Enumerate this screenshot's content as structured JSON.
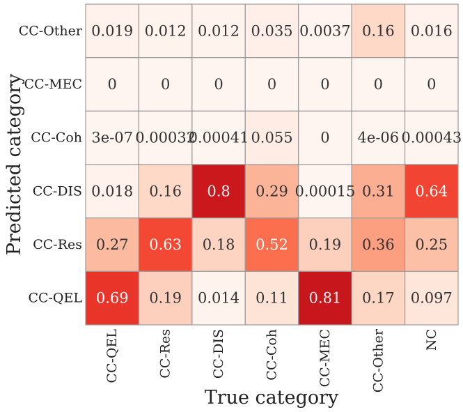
{
  "chart_data": {
    "type": "heatmap",
    "xlabel": "True category",
    "ylabel": "Predicted category",
    "x_categories": [
      "CC-QEL",
      "CC-Res",
      "CC-DIS",
      "CC-Coh",
      "CC-MEC",
      "CC-Other",
      "NC"
    ],
    "y_categories": [
      "CC-Other",
      "CC-MEC",
      "CC-Coh",
      "CC-DIS",
      "CC-Res",
      "CC-QEL"
    ],
    "values": [
      [
        0.019,
        0.012,
        0.012,
        0.035,
        0.0037,
        0.16,
        0.016
      ],
      [
        0,
        0,
        0,
        0,
        0,
        0,
        0
      ],
      [
        3e-07,
        0.00032,
        0.00041,
        0.055,
        0,
        4e-06,
        0.00043
      ],
      [
        0.018,
        0.16,
        0.8,
        0.29,
        0.00015,
        0.31,
        0.64
      ],
      [
        0.27,
        0.63,
        0.18,
        0.52,
        0.19,
        0.36,
        0.25
      ],
      [
        0.69,
        0.19,
        0.014,
        0.11,
        0.81,
        0.17,
        0.097
      ]
    ],
    "labels": [
      [
        "0.019",
        "0.012",
        "0.012",
        "0.035",
        "0.0037",
        "0.16",
        "0.016"
      ],
      [
        "0",
        "0",
        "0",
        "0",
        "0",
        "0",
        "0"
      ],
      [
        "3e-07",
        "0.00032",
        "0.00041",
        "0.055",
        "0",
        "4e-06",
        "0.00043"
      ],
      [
        "0.018",
        "0.16",
        "0.8",
        "0.29",
        "0.00015",
        "0.31",
        "0.64"
      ],
      [
        "0.27",
        "0.63",
        "0.18",
        "0.52",
        "0.19",
        "0.36",
        "0.25"
      ],
      [
        "0.69",
        "0.19",
        "0.014",
        "0.11",
        "0.81",
        "0.17",
        "0.097"
      ]
    ],
    "colormap": "Reds",
    "value_range": [
      0,
      0.81
    ],
    "cell_border_color": "#9a9a9a",
    "grid": true
  }
}
